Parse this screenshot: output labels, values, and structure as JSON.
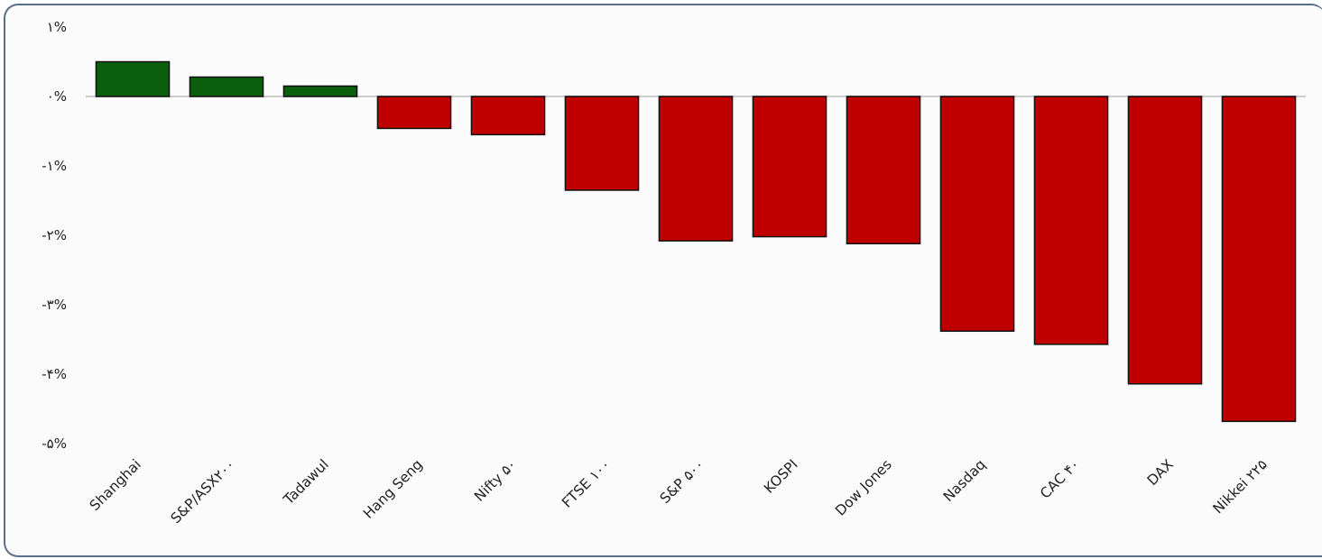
{
  "chart_data": {
    "type": "bar",
    "title": "",
    "xlabel": "",
    "ylabel": "",
    "ylim": [
      -5,
      1
    ],
    "y_ticks": [
      {
        "value": 1,
        "label": "۱%"
      },
      {
        "value": 0,
        "label": "۰%"
      },
      {
        "value": -1,
        "label": "-۱%"
      },
      {
        "value": -2,
        "label": "-۲%"
      },
      {
        "value": -3,
        "label": "-۳%"
      },
      {
        "value": -4,
        "label": "-۴%"
      },
      {
        "value": -5,
        "label": "-۵%"
      }
    ],
    "categories": [
      "Shanghai",
      "S&P/ASX۲۰۰",
      "Tadawul",
      "Hang Seng",
      "Nifty ۵۰",
      "FTSE ۱۰۰",
      "S&P ۵۰۰",
      "KOSPI",
      "Dow Jones",
      "Nasdaq",
      "CAC ۴۰",
      "DAX",
      "Nikkei ۲۲۵"
    ],
    "values": [
      0.5,
      0.28,
      0.15,
      -0.46,
      -0.55,
      -1.35,
      -2.08,
      -2.02,
      -2.12,
      -3.38,
      -3.57,
      -4.14,
      -4.68
    ],
    "colors": {
      "positive": "#0b5e0b",
      "negative": "#c00000",
      "bar_border": "#111111",
      "zero_line": "#cccccc"
    },
    "grid": false,
    "legend": "none"
  }
}
